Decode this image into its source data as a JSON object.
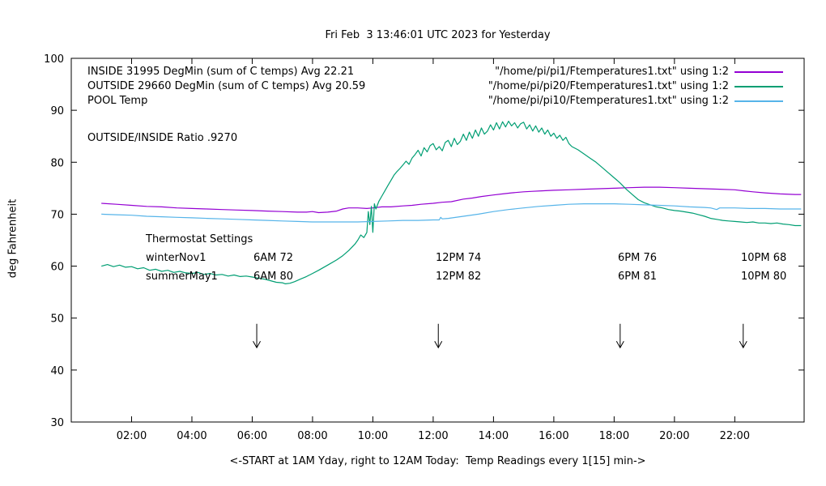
{
  "title": "Fri Feb  3 13:46:01 UTC 2023 for Yesterday",
  "legend": {
    "rows": [
      {
        "label": "INSIDE 31995 DegMin (sum of C temps) Avg 22.21",
        "file": "\"/home/pi/pi1/Ftemperatures1.txt\" using 1:2"
      },
      {
        "label": "OUTSIDE 29660 DegMin (sum of C temps) Avg 20.59",
        "file": "\"/home/pi/pi20/Ftemperatures1.txt\" using 1:2"
      },
      {
        "label": "POOL Temp",
        "file": "\"/home/pi/pi10/Ftemperatures1.txt\" using 1:2"
      }
    ]
  },
  "annotations": {
    "ratio": "OUTSIDE/INSIDE Ratio .9270",
    "thermostat": {
      "heading": "Thermostat Settings",
      "rows": [
        {
          "name": "winterNov1",
          "settings": [
            "6AM 72",
            "12PM 74",
            "6PM 76",
            "10PM 68"
          ]
        },
        {
          "name": "summerMay1",
          "settings": [
            "6AM 80",
            "12PM 82",
            "6PM 81",
            "10PM 80"
          ]
        }
      ]
    }
  },
  "chart_data": {
    "type": "line",
    "title": "Fri Feb  3 13:46:01 UTC 2023 for Yesterday",
    "xlabel": "<-START at 1AM Yday, right to 12AM Today:  Temp Readings every 1[15] min->",
    "ylabel": "deg Fahrenheit",
    "xlim": [
      0,
      24.3
    ],
    "ylim": [
      30,
      100
    ],
    "grid": false,
    "legend_position": "top",
    "x_ticks": [
      {
        "t": 2,
        "label": "02:00"
      },
      {
        "t": 4,
        "label": "04:00"
      },
      {
        "t": 6,
        "label": "06:00"
      },
      {
        "t": 8,
        "label": "08:00"
      },
      {
        "t": 10,
        "label": "10:00"
      },
      {
        "t": 12,
        "label": "12:00"
      },
      {
        "t": 14,
        "label": "14:00"
      },
      {
        "t": 16,
        "label": "16:00"
      },
      {
        "t": 18,
        "label": "18:00"
      },
      {
        "t": 20,
        "label": "20:00"
      },
      {
        "t": 22,
        "label": "22:00"
      }
    ],
    "y_ticks": [
      {
        "v": 30,
        "label": "30"
      },
      {
        "v": 40,
        "label": "40"
      },
      {
        "v": 50,
        "label": "50"
      },
      {
        "v": 60,
        "label": "60"
      },
      {
        "v": 70,
        "label": "70"
      },
      {
        "v": 80,
        "label": "80"
      },
      {
        "v": 90,
        "label": "90"
      },
      {
        "v": 100,
        "label": "100"
      }
    ],
    "arrows": [
      {
        "t": 6.15,
        "from": 48.9,
        "to": 44.3
      },
      {
        "t": 12.17,
        "from": 48.9,
        "to": 44.3
      },
      {
        "t": 18.2,
        "from": 48.9,
        "to": 44.3
      },
      {
        "t": 22.28,
        "from": 48.9,
        "to": 44.3
      }
    ],
    "series": [
      {
        "name": "INSIDE",
        "color": "#9400d3",
        "points": [
          [
            1,
            72.1
          ],
          [
            1.5,
            71.9
          ],
          [
            2,
            71.7
          ],
          [
            2.5,
            71.5
          ],
          [
            3,
            71.4
          ],
          [
            3.5,
            71.2
          ],
          [
            4,
            71.1
          ],
          [
            4.5,
            71.0
          ],
          [
            5,
            70.9
          ],
          [
            5.5,
            70.8
          ],
          [
            6,
            70.7
          ],
          [
            6.5,
            70.6
          ],
          [
            7,
            70.5
          ],
          [
            7.5,
            70.4
          ],
          [
            7.8,
            70.4
          ],
          [
            8,
            70.5
          ],
          [
            8.2,
            70.3
          ],
          [
            8.5,
            70.4
          ],
          [
            8.8,
            70.6
          ],
          [
            9,
            71.0
          ],
          [
            9.2,
            71.2
          ],
          [
            9.5,
            71.2
          ],
          [
            9.8,
            71.1
          ],
          [
            10,
            71.2
          ],
          [
            10.3,
            71.4
          ],
          [
            10.6,
            71.4
          ],
          [
            11,
            71.6
          ],
          [
            11.3,
            71.7
          ],
          [
            11.6,
            71.9
          ],
          [
            12,
            72.1
          ],
          [
            12.3,
            72.3
          ],
          [
            12.6,
            72.4
          ],
          [
            13,
            72.9
          ],
          [
            13.3,
            73.1
          ],
          [
            13.6,
            73.4
          ],
          [
            14,
            73.7
          ],
          [
            14.3,
            73.9
          ],
          [
            14.6,
            74.1
          ],
          [
            15,
            74.3
          ],
          [
            15.3,
            74.4
          ],
          [
            15.6,
            74.5
          ],
          [
            16,
            74.6
          ],
          [
            16.5,
            74.7
          ],
          [
            17,
            74.8
          ],
          [
            17.5,
            74.9
          ],
          [
            18,
            75.0
          ],
          [
            18.5,
            75.1
          ],
          [
            19,
            75.2
          ],
          [
            19.5,
            75.2
          ],
          [
            20,
            75.1
          ],
          [
            20.5,
            75.0
          ],
          [
            21,
            74.9
          ],
          [
            21.5,
            74.8
          ],
          [
            22,
            74.7
          ],
          [
            22.3,
            74.5
          ],
          [
            22.6,
            74.3
          ],
          [
            23,
            74.1
          ],
          [
            23.5,
            73.9
          ],
          [
            24,
            73.8
          ],
          [
            24.2,
            73.8
          ]
        ]
      },
      {
        "name": "OUTSIDE",
        "color": "#009e73",
        "points": [
          [
            1,
            60.0
          ],
          [
            1.2,
            60.3
          ],
          [
            1.4,
            59.9
          ],
          [
            1.6,
            60.2
          ],
          [
            1.8,
            59.8
          ],
          [
            2,
            59.9
          ],
          [
            2.2,
            59.5
          ],
          [
            2.4,
            59.7
          ],
          [
            2.6,
            59.2
          ],
          [
            2.8,
            59.4
          ],
          [
            3,
            59.0
          ],
          [
            3.2,
            59.2
          ],
          [
            3.4,
            58.8
          ],
          [
            3.6,
            59.0
          ],
          [
            3.8,
            58.7
          ],
          [
            4,
            58.6
          ],
          [
            4.2,
            58.8
          ],
          [
            4.4,
            58.4
          ],
          [
            4.6,
            58.6
          ],
          [
            4.8,
            58.3
          ],
          [
            5,
            58.4
          ],
          [
            5.2,
            58.1
          ],
          [
            5.4,
            58.3
          ],
          [
            5.6,
            58.0
          ],
          [
            5.8,
            58.1
          ],
          [
            6,
            57.9
          ],
          [
            6.2,
            57.7
          ],
          [
            6.4,
            57.5
          ],
          [
            6.6,
            57.2
          ],
          [
            6.8,
            56.9
          ],
          [
            7,
            56.8
          ],
          [
            7.1,
            56.6
          ],
          [
            7.25,
            56.7
          ],
          [
            7.4,
            57.0
          ],
          [
            7.6,
            57.5
          ],
          [
            7.8,
            58.0
          ],
          [
            8,
            58.6
          ],
          [
            8.2,
            59.2
          ],
          [
            8.5,
            60.2
          ],
          [
            8.8,
            61.2
          ],
          [
            9,
            62.0
          ],
          [
            9.2,
            63.0
          ],
          [
            9.4,
            64.2
          ],
          [
            9.5,
            65.0
          ],
          [
            9.6,
            66.0
          ],
          [
            9.7,
            65.5
          ],
          [
            9.8,
            66.5
          ],
          [
            9.85,
            70.5
          ],
          [
            9.9,
            68.0
          ],
          [
            9.95,
            71.5
          ],
          [
            10,
            66.5
          ],
          [
            10.05,
            72.0
          ],
          [
            10.1,
            71.0
          ],
          [
            10.2,
            72.5
          ],
          [
            10.3,
            73.5
          ],
          [
            10.4,
            74.5
          ],
          [
            10.5,
            75.5
          ],
          [
            10.6,
            76.5
          ],
          [
            10.7,
            77.5
          ],
          [
            10.8,
            78.2
          ],
          [
            10.9,
            78.8
          ],
          [
            11,
            79.5
          ],
          [
            11.1,
            80.2
          ],
          [
            11.2,
            79.6
          ],
          [
            11.3,
            80.8
          ],
          [
            11.4,
            81.5
          ],
          [
            11.5,
            82.3
          ],
          [
            11.6,
            81.2
          ],
          [
            11.7,
            82.8
          ],
          [
            11.8,
            82.0
          ],
          [
            11.9,
            83.2
          ],
          [
            12,
            83.6
          ],
          [
            12.1,
            82.4
          ],
          [
            12.2,
            83.0
          ],
          [
            12.3,
            82.2
          ],
          [
            12.4,
            83.8
          ],
          [
            12.5,
            84.2
          ],
          [
            12.6,
            83.0
          ],
          [
            12.7,
            84.6
          ],
          [
            12.8,
            83.4
          ],
          [
            12.9,
            84.0
          ],
          [
            13,
            85.4
          ],
          [
            13.1,
            84.2
          ],
          [
            13.2,
            85.8
          ],
          [
            13.3,
            84.6
          ],
          [
            13.4,
            86.2
          ],
          [
            13.5,
            85.0
          ],
          [
            13.6,
            86.6
          ],
          [
            13.7,
            85.4
          ],
          [
            13.8,
            86.0
          ],
          [
            13.9,
            87.2
          ],
          [
            14,
            86.2
          ],
          [
            14.1,
            87.6
          ],
          [
            14.2,
            86.4
          ],
          [
            14.3,
            87.8
          ],
          [
            14.4,
            86.8
          ],
          [
            14.5,
            87.9
          ],
          [
            14.6,
            87.0
          ],
          [
            14.7,
            87.6
          ],
          [
            14.8,
            86.6
          ],
          [
            14.9,
            87.4
          ],
          [
            15,
            87.7
          ],
          [
            15.1,
            86.4
          ],
          [
            15.2,
            87.2
          ],
          [
            15.3,
            86.0
          ],
          [
            15.4,
            87.0
          ],
          [
            15.5,
            85.8
          ],
          [
            15.6,
            86.6
          ],
          [
            15.7,
            85.4
          ],
          [
            15.8,
            86.2
          ],
          [
            15.9,
            85.0
          ],
          [
            16,
            85.6
          ],
          [
            16.1,
            84.6
          ],
          [
            16.2,
            85.2
          ],
          [
            16.3,
            84.2
          ],
          [
            16.4,
            84.8
          ],
          [
            16.5,
            83.6
          ],
          [
            16.6,
            83.0
          ],
          [
            16.8,
            82.4
          ],
          [
            17,
            81.6
          ],
          [
            17.2,
            80.8
          ],
          [
            17.4,
            80.0
          ],
          [
            17.6,
            79.0
          ],
          [
            17.8,
            78.0
          ],
          [
            18,
            77.0
          ],
          [
            18.2,
            76.0
          ],
          [
            18.4,
            74.8
          ],
          [
            18.6,
            73.8
          ],
          [
            18.8,
            72.8
          ],
          [
            19,
            72.2
          ],
          [
            19.2,
            71.8
          ],
          [
            19.4,
            71.4
          ],
          [
            19.6,
            71.2
          ],
          [
            19.8,
            70.9
          ],
          [
            20,
            70.7
          ],
          [
            20.2,
            70.6
          ],
          [
            20.4,
            70.4
          ],
          [
            20.6,
            70.2
          ],
          [
            20.8,
            69.9
          ],
          [
            21,
            69.6
          ],
          [
            21.2,
            69.2
          ],
          [
            21.4,
            69.0
          ],
          [
            21.6,
            68.8
          ],
          [
            21.8,
            68.7
          ],
          [
            22,
            68.6
          ],
          [
            22.2,
            68.5
          ],
          [
            22.4,
            68.4
          ],
          [
            22.6,
            68.5
          ],
          [
            22.8,
            68.3
          ],
          [
            23,
            68.3
          ],
          [
            23.2,
            68.2
          ],
          [
            23.4,
            68.3
          ],
          [
            23.6,
            68.1
          ],
          [
            23.8,
            68.0
          ],
          [
            24,
            67.8
          ],
          [
            24.2,
            67.8
          ]
        ]
      },
      {
        "name": "POOL",
        "color": "#56b4e9",
        "points": [
          [
            1,
            70.0
          ],
          [
            1.5,
            69.9
          ],
          [
            2,
            69.8
          ],
          [
            2.5,
            69.6
          ],
          [
            3,
            69.5
          ],
          [
            3.5,
            69.4
          ],
          [
            4,
            69.3
          ],
          [
            4.5,
            69.2
          ],
          [
            5,
            69.1
          ],
          [
            5.5,
            69.0
          ],
          [
            6,
            68.9
          ],
          [
            6.5,
            68.8
          ],
          [
            7,
            68.7
          ],
          [
            7.5,
            68.6
          ],
          [
            8,
            68.5
          ],
          [
            8.5,
            68.5
          ],
          [
            9,
            68.5
          ],
          [
            9.5,
            68.5
          ],
          [
            10,
            68.6
          ],
          [
            10.5,
            68.7
          ],
          [
            11,
            68.8
          ],
          [
            11.5,
            68.8
          ],
          [
            12,
            68.9
          ],
          [
            12.2,
            68.9
          ],
          [
            12.25,
            69.4
          ],
          [
            12.3,
            69.1
          ],
          [
            12.5,
            69.2
          ],
          [
            13,
            69.6
          ],
          [
            13.5,
            70.0
          ],
          [
            14,
            70.5
          ],
          [
            14.5,
            70.9
          ],
          [
            15,
            71.2
          ],
          [
            15.5,
            71.5
          ],
          [
            16,
            71.7
          ],
          [
            16.5,
            71.9
          ],
          [
            17,
            72.0
          ],
          [
            17.5,
            72.0
          ],
          [
            18,
            72.0
          ],
          [
            18.5,
            71.9
          ],
          [
            19,
            71.8
          ],
          [
            19.5,
            71.7
          ],
          [
            20,
            71.6
          ],
          [
            20.5,
            71.4
          ],
          [
            21,
            71.3
          ],
          [
            21.2,
            71.2
          ],
          [
            21.4,
            70.9
          ],
          [
            21.5,
            71.2
          ],
          [
            22,
            71.2
          ],
          [
            22.5,
            71.1
          ],
          [
            23,
            71.1
          ],
          [
            23.5,
            71.0
          ],
          [
            24,
            71.0
          ],
          [
            24.2,
            71.0
          ]
        ]
      }
    ]
  }
}
